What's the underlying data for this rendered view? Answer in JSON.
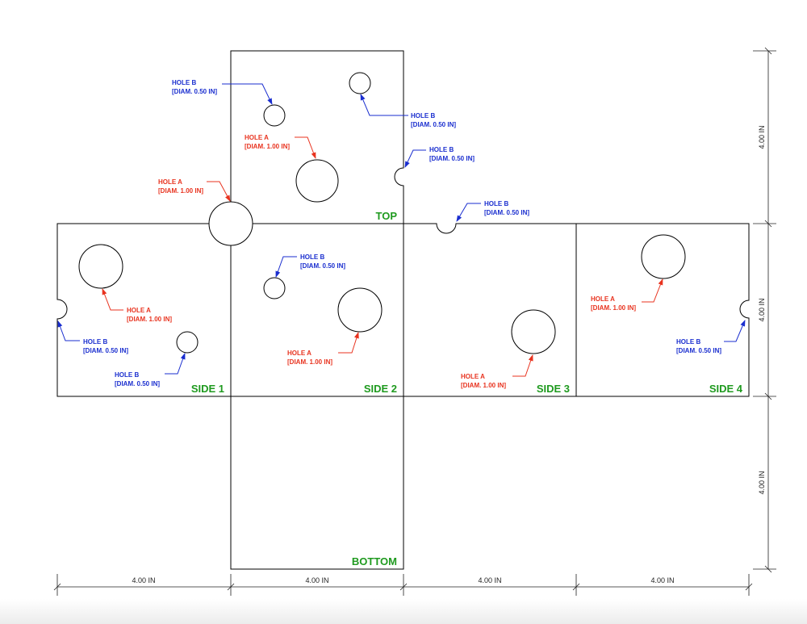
{
  "colors": {
    "hole_a": "#e8331f",
    "hole_b": "#1a2ecf",
    "face_label": "#1f9a1f",
    "line": "#000000"
  },
  "faces": {
    "top": "TOP",
    "side1": "SIDE 1",
    "side2": "SIDE 2",
    "side3": "SIDE 3",
    "side4": "SIDE 4",
    "bottom": "BOTTOM"
  },
  "notes": {
    "hole_a_title": "HOLE A",
    "hole_a_diam": "[DIAM. 1.00 IN]",
    "hole_b_title": "HOLE B",
    "hole_b_diam": "[DIAM. 0.50 IN]"
  },
  "dimensions": {
    "width": "4.00 IN",
    "height": "4.00 IN"
  }
}
